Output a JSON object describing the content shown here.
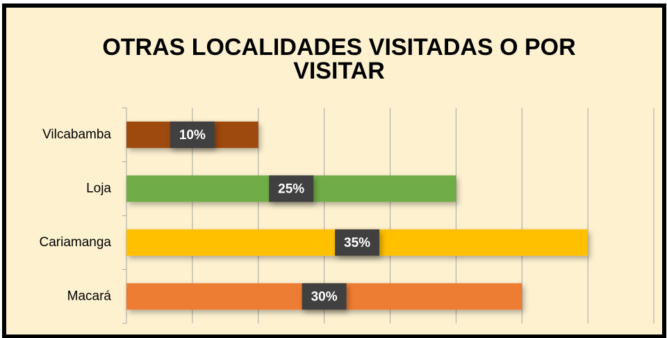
{
  "chart_data": {
    "type": "barh",
    "title": "OTRAS LOCALIDADES VISITADAS O POR VISITAR",
    "categories": [
      "Vilcabamba",
      "Loja",
      "Cariamanga",
      "Macará"
    ],
    "values": [
      10,
      25,
      35,
      30
    ],
    "value_labels": [
      "10%",
      "25%",
      "35%",
      "30%"
    ],
    "colors": [
      "#9e480e",
      "#70ad47",
      "#ffc000",
      "#ed7d31"
    ],
    "xlim": [
      0,
      40
    ],
    "xticks": [
      0,
      5,
      10,
      15,
      20,
      25,
      30,
      35,
      40
    ],
    "grid": true
  }
}
